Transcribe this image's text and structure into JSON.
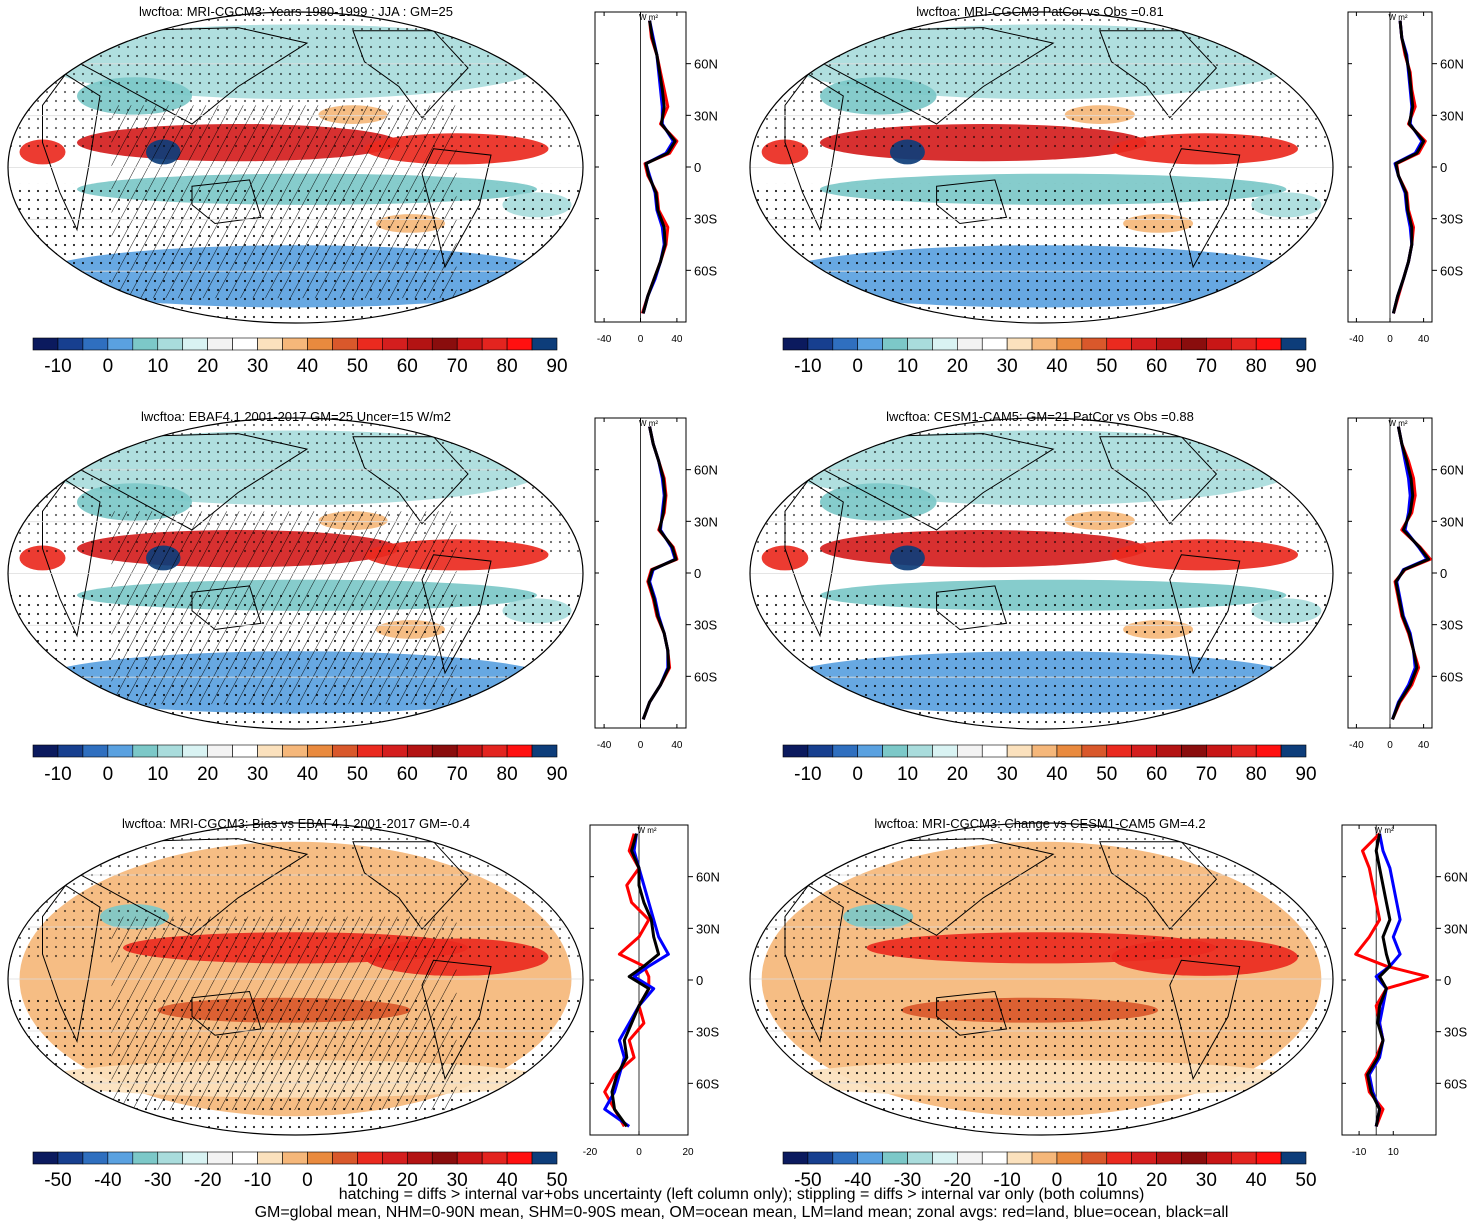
{
  "colorbar": {
    "colors": [
      "#0b1a5e",
      "#173f8f",
      "#2f6fbf",
      "#5aa1e0",
      "#7cc8c8",
      "#a9dcdc",
      "#d9f3f3",
      "#f3f3f3",
      "#ffffff",
      "#fbe1bd",
      "#f5b77a",
      "#e98a3e",
      "#d9582b",
      "#ea2a1f",
      "#d41e1e",
      "#b31313",
      "#8a0d0d",
      "#c81616",
      "#e3241f",
      "#ff1010",
      "#0d3d7a"
    ],
    "labels_abs": [
      "-10",
      "0",
      "10",
      "20",
      "30",
      "40",
      "50",
      "60",
      "70",
      "80",
      "90"
    ],
    "labels_diff": [
      "-50",
      "-40",
      "-30",
      "-20",
      "-10",
      "0",
      "10",
      "20",
      "30",
      "40",
      "50"
    ]
  },
  "colors": {
    "land": "#ff0000",
    "ocean": "#0000ff",
    "all": "#000000",
    "hatch": "#333333"
  },
  "footer": {
    "line1": "hatching = diffs > internal var+obs uncertainty (left column only); stippling = diffs > internal var only (both columns)",
    "line2": "GM=global mean, NHM=0-90N mean, SHM=0-90S mean, OM=ocean mean, LM=land mean; zonal avgs: red=land, blue=ocean, black=all"
  },
  "chart_data": [
    {
      "type": "heatmap",
      "title": "lwcftoa: MRI-CGCM3: Years 1980-1999 : JJA : GM=25",
      "colorbar_labels": "abs",
      "zonal_mean": {
        "units": "W m²",
        "xlim": [
          -50,
          50
        ],
        "xticks": [
          "-40",
          "0",
          "40"
        ],
        "yticks": [
          "60N",
          "30N",
          "0",
          "30S",
          "60S"
        ],
        "lat": [
          85,
          75,
          65,
          55,
          45,
          35,
          25,
          15,
          8,
          2,
          -5,
          -15,
          -25,
          -35,
          -45,
          -55,
          -65,
          -75,
          -85
        ],
        "land": [
          10,
          12,
          18,
          22,
          26,
          30,
          22,
          40,
          32,
          5,
          8,
          18,
          20,
          30,
          28,
          22,
          15,
          8,
          2
        ],
        "ocean": [
          10,
          14,
          18,
          20,
          22,
          24,
          24,
          36,
          28,
          6,
          10,
          16,
          18,
          24,
          26,
          22,
          16,
          8,
          3
        ],
        "all": [
          10,
          13,
          18,
          21,
          24,
          26,
          23,
          38,
          30,
          6,
          9,
          17,
          19,
          26,
          27,
          22,
          15,
          8,
          3
        ]
      }
    },
    {
      "type": "heatmap",
      "title": "lwcftoa: MRI-CGCM3 PatCor vs Obs =0.81",
      "colorbar_labels": "abs",
      "zonal_mean": {
        "units": "W m²",
        "xlim": [
          -50,
          50
        ],
        "xticks": [
          "-40",
          "0",
          "40"
        ],
        "yticks": [
          "60N",
          "30N",
          "0",
          "30S",
          "60S"
        ],
        "lat": [
          85,
          75,
          65,
          55,
          45,
          35,
          25,
          15,
          8,
          2,
          -5,
          -15,
          -25,
          -35,
          -45,
          -55,
          -65,
          -75,
          -85
        ],
        "land": [
          12,
          14,
          18,
          24,
          26,
          30,
          22,
          42,
          34,
          8,
          10,
          20,
          22,
          28,
          26,
          22,
          16,
          10,
          4
        ],
        "ocean": [
          12,
          14,
          20,
          22,
          24,
          26,
          24,
          38,
          30,
          6,
          10,
          18,
          20,
          24,
          26,
          22,
          16,
          9,
          4
        ],
        "all": [
          12,
          14,
          19,
          23,
          25,
          27,
          23,
          40,
          32,
          7,
          10,
          19,
          21,
          26,
          26,
          22,
          16,
          9,
          4
        ]
      }
    },
    {
      "type": "heatmap",
      "title": "lwcftoa: EBAF4.1 2001-2017 GM=25 Uncer=15 W/m2",
      "colorbar_labels": "abs",
      "zonal_mean": {
        "units": "W m²",
        "xlim": [
          -50,
          50
        ],
        "xticks": [
          "-40",
          "0",
          "40"
        ],
        "yticks": [
          "60N",
          "30N",
          "0",
          "30S",
          "60S"
        ],
        "lat": [
          85,
          75,
          65,
          55,
          45,
          35,
          25,
          15,
          8,
          2,
          -5,
          -15,
          -25,
          -35,
          -45,
          -55,
          -65,
          -75,
          -85
        ],
        "land": [
          10,
          14,
          20,
          26,
          28,
          26,
          20,
          36,
          40,
          12,
          8,
          14,
          18,
          26,
          30,
          32,
          22,
          10,
          3
        ],
        "ocean": [
          10,
          14,
          20,
          24,
          26,
          24,
          22,
          34,
          38,
          14,
          10,
          16,
          20,
          26,
          30,
          30,
          22,
          10,
          3
        ],
        "all": [
          10,
          14,
          20,
          25,
          27,
          25,
          21,
          35,
          39,
          13,
          9,
          15,
          19,
          26,
          30,
          31,
          22,
          10,
          3
        ]
      }
    },
    {
      "type": "heatmap",
      "title": "lwcftoa: CESM1-CAM5: GM=21 PatCor vs Obs =0.88",
      "colorbar_labels": "abs",
      "zonal_mean": {
        "units": "W m²",
        "xlim": [
          -50,
          50
        ],
        "xticks": [
          "-40",
          "0",
          "40"
        ],
        "yticks": [
          "60N",
          "30N",
          "0",
          "30S",
          "60S"
        ],
        "lat": [
          85,
          75,
          65,
          55,
          45,
          35,
          25,
          15,
          8,
          2,
          -5,
          -15,
          -25,
          -35,
          -45,
          -55,
          -65,
          -75,
          -85
        ],
        "land": [
          10,
          14,
          22,
          28,
          30,
          26,
          14,
          36,
          48,
          18,
          6,
          10,
          14,
          22,
          28,
          34,
          26,
          12,
          3
        ],
        "ocean": [
          10,
          14,
          18,
          22,
          24,
          22,
          18,
          34,
          44,
          16,
          8,
          12,
          16,
          24,
          28,
          30,
          22,
          10,
          3
        ],
        "all": [
          10,
          14,
          20,
          25,
          27,
          24,
          16,
          35,
          46,
          17,
          7,
          11,
          15,
          23,
          28,
          32,
          24,
          11,
          3
        ]
      }
    },
    {
      "type": "heatmap",
      "title": "lwcftoa: MRI-CGCM3: Bias vs EBAF4.1 2001-2017 GM=-0.4",
      "colorbar_labels": "diff",
      "zonal_mean": {
        "units": "W m²",
        "xlim": [
          -20,
          20
        ],
        "xticks": [
          "-20",
          "0",
          "20"
        ],
        "yticks": [
          "60N",
          "30N",
          "0",
          "30S",
          "60S"
        ],
        "lat": [
          85,
          75,
          65,
          55,
          45,
          35,
          25,
          15,
          8,
          2,
          -5,
          -15,
          -25,
          -35,
          -45,
          -55,
          -65,
          -75,
          -85
        ],
        "land": [
          -2,
          -4,
          0,
          -5,
          -3,
          4,
          0,
          -8,
          2,
          4,
          4,
          0,
          2,
          -4,
          -2,
          -10,
          -14,
          -10,
          -6
        ],
        "ocean": [
          -1,
          -2,
          0,
          2,
          4,
          6,
          8,
          12,
          4,
          -2,
          6,
          0,
          -4,
          -8,
          -6,
          -8,
          -10,
          -14,
          -4
        ],
        "all": [
          -1,
          -3,
          0,
          0,
          2,
          5,
          6,
          8,
          2,
          -4,
          4,
          0,
          -3,
          -6,
          -5,
          -9,
          -11,
          -10,
          -5
        ]
      }
    },
    {
      "type": "heatmap",
      "title": "lwcftoa: MRI-CGCM3: Change vs CESM1-CAM5 GM=4.2",
      "colorbar_labels": "diff",
      "zonal_mean": {
        "units": "W m²",
        "xlim": [
          -20,
          35
        ],
        "xticks": [
          "-10",
          "10"
        ],
        "yticks": [
          "60N",
          "30N",
          "0",
          "30S",
          "60S"
        ],
        "lat": [
          85,
          75,
          65,
          55,
          45,
          35,
          25,
          15,
          8,
          2,
          -5,
          -15,
          -25,
          -35,
          -45,
          -55,
          -65,
          -75,
          -85
        ],
        "land": [
          2,
          -8,
          -4,
          -2,
          0,
          2,
          -4,
          -12,
          6,
          30,
          6,
          0,
          2,
          4,
          0,
          -6,
          -4,
          4,
          0
        ],
        "ocean": [
          2,
          4,
          8,
          10,
          12,
          14,
          10,
          14,
          8,
          0,
          6,
          4,
          2,
          4,
          2,
          -4,
          -2,
          2,
          0
        ],
        "all": [
          2,
          0,
          2,
          4,
          6,
          8,
          4,
          6,
          8,
          2,
          6,
          2,
          1,
          4,
          1,
          -5,
          -3,
          2,
          0
        ]
      }
    }
  ]
}
